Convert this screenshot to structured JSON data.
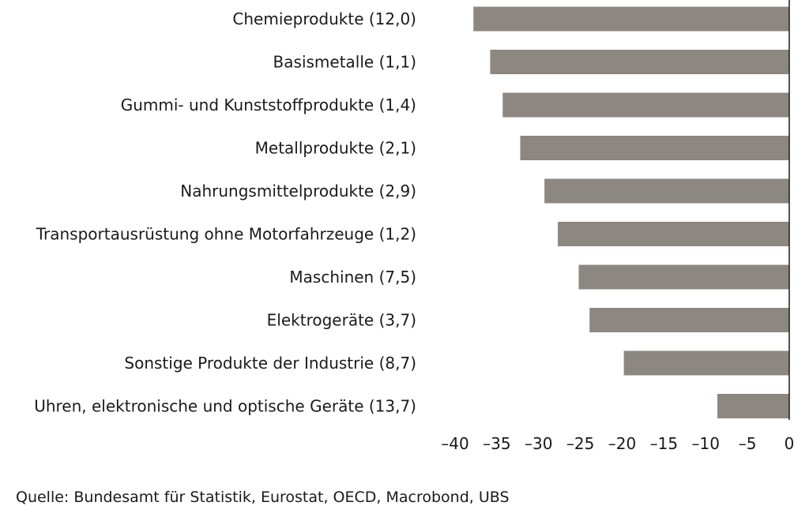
{
  "chart_data": {
    "type": "bar",
    "orientation": "horizontal",
    "categories": [
      "Chemieprodukte (12,0)",
      "Basismetalle (1,1)",
      "Gummi- und Kunststoffprodukte (1,4)",
      "Metallprodukte (2,1)",
      "Nahrungsmittelprodukte (2,9)",
      "Transportausrüstung ohne Motorfahrzeuge (1,2)",
      "Maschinen (7,5)",
      "Elektrogeräte (3,7)",
      "Sonstige Produkte der Industrie (8,7)",
      "Uhren, elektronische und optische Geräte (13,7)"
    ],
    "values": [
      -37.8,
      -35.8,
      -34.3,
      -32.2,
      -29.3,
      -27.7,
      -25.2,
      -23.9,
      -19.8,
      -8.6
    ],
    "xlim": [
      -40,
      0
    ],
    "xticks": [
      -40,
      -35,
      -30,
      -25,
      -20,
      -15,
      -10,
      -5,
      0
    ],
    "xtick_labels": [
      "–40",
      "–35",
      "–30",
      "–25",
      "–20",
      "–15",
      "–10",
      "–5",
      "0"
    ],
    "bar_color": "#8c8780",
    "axis_color": "#1a1a1a",
    "grid": false,
    "legend": "none"
  },
  "source": "Quelle: Bundesamt für Statistik, Eurostat, OECD, Macrobond, UBS"
}
